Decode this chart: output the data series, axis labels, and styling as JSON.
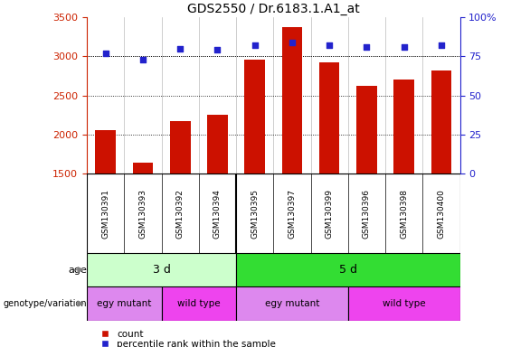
{
  "title": "GDS2550 / Dr.6183.1.A1_at",
  "samples": [
    "GSM130391",
    "GSM130393",
    "GSM130392",
    "GSM130394",
    "GSM130395",
    "GSM130397",
    "GSM130399",
    "GSM130396",
    "GSM130398",
    "GSM130400"
  ],
  "counts": [
    2050,
    1640,
    2170,
    2250,
    2960,
    3380,
    2920,
    2620,
    2700,
    2820
  ],
  "percentile_ranks": [
    77,
    73,
    80,
    79,
    82,
    84,
    82,
    81,
    81,
    82
  ],
  "ylim_left": [
    1500,
    3500
  ],
  "ylim_right": [
    0,
    100
  ],
  "yticks_left": [
    1500,
    2000,
    2500,
    3000,
    3500
  ],
  "yticks_right": [
    0,
    25,
    50,
    75,
    100
  ],
  "bar_color": "#cc1100",
  "dot_color": "#2222cc",
  "age_color_3d": "#ccffcc",
  "age_color_5d": "#33dd33",
  "geno_color_egy": "#dd88ee",
  "geno_color_wild": "#ee44ee",
  "sample_bg": "#dddddd",
  "left_axis_color": "#cc2200",
  "right_axis_color": "#2222cc",
  "age_groups": [
    {
      "label": "3 d",
      "start": 0,
      "end": 4,
      "color_key": "age_color_3d"
    },
    {
      "label": "5 d",
      "start": 4,
      "end": 10,
      "color_key": "age_color_5d"
    }
  ],
  "genotype_groups": [
    {
      "label": "egy mutant",
      "start": 0,
      "end": 2,
      "color_key": "geno_color_egy"
    },
    {
      "label": "wild type",
      "start": 2,
      "end": 4,
      "color_key": "geno_color_wild"
    },
    {
      "label": "egy mutant",
      "start": 4,
      "end": 7,
      "color_key": "geno_color_egy"
    },
    {
      "label": "wild type",
      "start": 7,
      "end": 10,
      "color_key": "geno_color_wild"
    }
  ]
}
